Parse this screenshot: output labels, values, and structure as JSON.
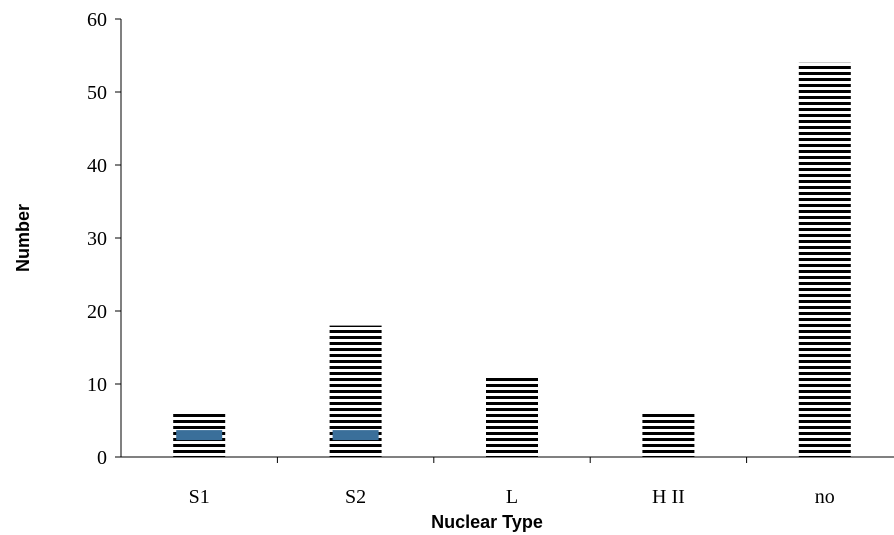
{
  "chart_data": {
    "type": "bar",
    "title": "",
    "xlabel": "Nuclear Type",
    "ylabel": "Number",
    "categories": [
      "S1",
      "S2",
      "L",
      "H II",
      "no"
    ],
    "series": [
      {
        "values": [
          6,
          18,
          11,
          6,
          54
        ],
        "pattern": "horizontal-stripes",
        "color": "#000000"
      }
    ],
    "highlight": {
      "values": [
        3,
        3,
        null,
        null,
        null
      ],
      "color": "#3a6f9a"
    },
    "ylim": [
      0,
      60
    ],
    "yticks": [
      "0",
      "10",
      "20",
      "30",
      "40",
      "50",
      "60"
    ],
    "grid": false,
    "legend": "none"
  }
}
